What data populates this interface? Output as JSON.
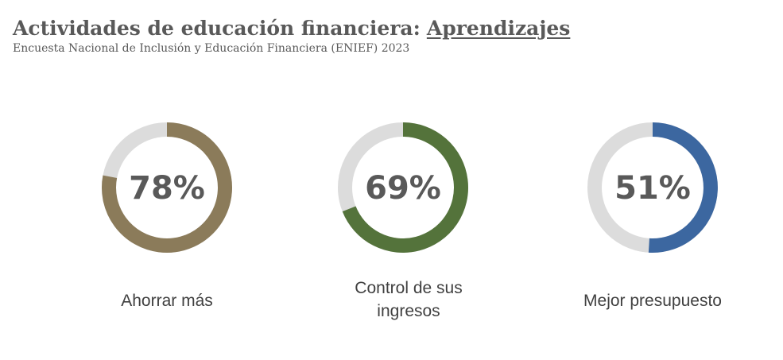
{
  "header": {
    "title": "Actividades de educación financiera:",
    "title_highlight": "Aprendizajes",
    "subtitle": "Encuesta Nacional de Inclusión y Educación Financiera (ENIEF) 2023"
  },
  "chart_data": {
    "type": "pie",
    "categories": [
      "Ahorrar más",
      "Control de sus ingresos",
      "Mejor presupuesto"
    ],
    "values": [
      78,
      69,
      51
    ],
    "value_labels": [
      "78%",
      "69%",
      "51%"
    ],
    "label_lines": [
      [
        "Ahorrar más"
      ],
      [
        "Control de sus",
        "ingresos"
      ],
      [
        "Mejor presupuesto"
      ]
    ],
    "colors": [
      "#8b7b5a",
      "#54733b",
      "#3c67a0"
    ],
    "track_color": "#dcdcdc",
    "max": 100
  }
}
